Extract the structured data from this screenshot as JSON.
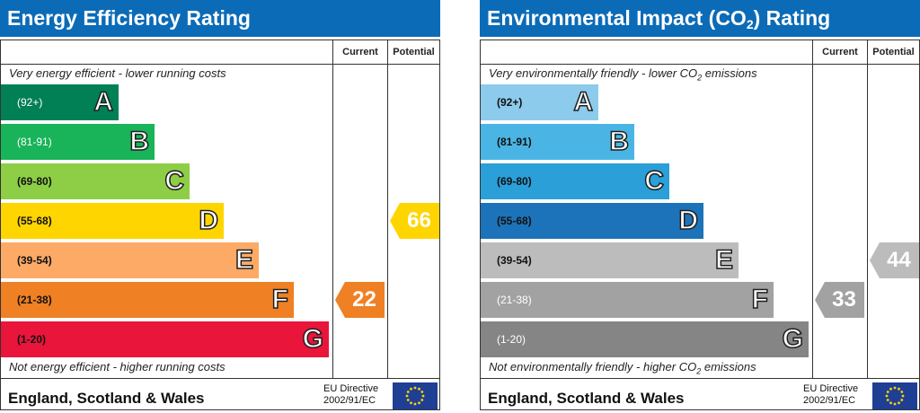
{
  "colors": {
    "title_bar": "#0b6bb7",
    "energy_bands": [
      "#008054",
      "#19b459",
      "#8dce46",
      "#ffd500",
      "#fcaa65",
      "#ef8023",
      "#e9153b"
    ],
    "environmental_bands": [
      "#8ccbeb",
      "#4ab5e5",
      "#2a9fd8",
      "#1d73b9",
      "#bcbcbc",
      "#a2a2a2",
      "#858585"
    ],
    "eu_flag": "#1f3f94",
    "eu_stars": "#ffd200"
  },
  "energy": {
    "title": "Energy Efficiency Rating",
    "col_current": "Current",
    "col_potential": "Potential",
    "top_caption": "Very energy efficient - lower running costs",
    "bottom_caption": "Not energy efficient - higher running costs",
    "footer": "England, Scotland & Wales",
    "directive_line1": "EU Directive",
    "directive_line2": "2002/91/EC"
  },
  "environmental": {
    "title_main": "Environmental Impact (CO",
    "title_sub": "2",
    "title_end": ") Rating",
    "col_current": "Current",
    "col_potential": "Potential",
    "top_caption_main": "Very environmentally friendly - lower CO",
    "top_caption_sub": "2",
    "top_caption_end": " emissions",
    "bottom_caption_main": "Not environmentally friendly - higher CO",
    "bottom_caption_sub": "2",
    "bottom_caption_end": " emissions",
    "footer": "England, Scotland & Wales",
    "directive_line1": "EU Directive",
    "directive_line2": "2002/91/EC"
  },
  "chart_data": [
    {
      "type": "bar",
      "title": "Energy Efficiency Rating",
      "categories": [
        "A",
        "B",
        "C",
        "D",
        "E",
        "F",
        "G"
      ],
      "ranges": [
        "(92+)",
        "(81-91)",
        "(69-80)",
        "(55-68)",
        "(39-54)",
        "(21-38)",
        "(1-20)"
      ],
      "current": 22,
      "current_band": "F",
      "potential": 66,
      "potential_band": "D"
    },
    {
      "type": "bar",
      "title": "Environmental Impact (CO2) Rating",
      "categories": [
        "A",
        "B",
        "C",
        "D",
        "E",
        "F",
        "G"
      ],
      "ranges": [
        "(92+)",
        "(81-91)",
        "(69-80)",
        "(55-68)",
        "(39-54)",
        "(21-38)",
        "(1-20)"
      ],
      "current": 33,
      "current_band": "F",
      "potential": 44,
      "potential_band": "E"
    }
  ]
}
